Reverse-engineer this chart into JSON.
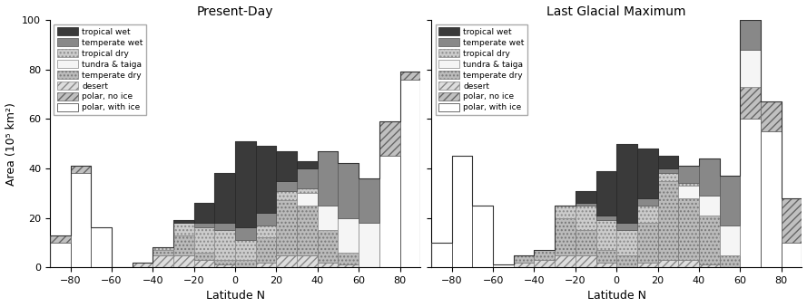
{
  "latitudes": [
    -85,
    -75,
    -65,
    -55,
    -45,
    -35,
    -25,
    -15,
    -5,
    5,
    15,
    25,
    35,
    45,
    55,
    65,
    75,
    85
  ],
  "bin_width": 10,
  "present_day": {
    "polar_with_ice": [
      10,
      38,
      16,
      0,
      0,
      0,
      0,
      0,
      0,
      0,
      0,
      0,
      0,
      0,
      0,
      0,
      45,
      76
    ],
    "polar_no_ice": [
      3,
      3,
      0,
      0,
      0,
      0,
      0,
      0,
      0,
      0,
      0,
      0,
      0,
      0,
      0,
      0,
      14,
      3
    ],
    "desert": [
      0,
      0,
      0,
      0,
      2,
      5,
      5,
      3,
      1,
      0,
      2,
      5,
      5,
      2,
      1,
      0,
      0,
      0
    ],
    "temperate_dry": [
      0,
      0,
      0,
      0,
      0,
      2,
      8,
      3,
      2,
      3,
      10,
      22,
      20,
      13,
      5,
      0,
      0,
      0
    ],
    "tundra_taiga": [
      0,
      0,
      0,
      0,
      0,
      0,
      0,
      0,
      0,
      0,
      0,
      0,
      5,
      10,
      14,
      18,
      0,
      0
    ],
    "tropical_dry": [
      0,
      0,
      0,
      0,
      0,
      1,
      5,
      10,
      12,
      8,
      5,
      4,
      2,
      0,
      0,
      0,
      0,
      0
    ],
    "temperate_wet": [
      0,
      0,
      0,
      0,
      0,
      0,
      0,
      2,
      3,
      5,
      5,
      4,
      8,
      22,
      22,
      18,
      0,
      0
    ],
    "tropical_wet": [
      0,
      0,
      0,
      0,
      0,
      0,
      1,
      8,
      20,
      35,
      27,
      12,
      3,
      0,
      0,
      0,
      0,
      0
    ]
  },
  "lgm": {
    "polar_with_ice": [
      10,
      45,
      25,
      1,
      0,
      0,
      0,
      0,
      0,
      0,
      0,
      0,
      0,
      0,
      0,
      60,
      55,
      10
    ],
    "polar_no_ice": [
      0,
      0,
      0,
      0,
      0,
      0,
      0,
      0,
      0,
      0,
      0,
      0,
      0,
      0,
      0,
      13,
      12,
      18
    ],
    "desert": [
      0,
      0,
      0,
      0,
      2,
      3,
      5,
      5,
      2,
      0,
      2,
      3,
      3,
      1,
      0,
      0,
      0,
      0
    ],
    "temperate_dry": [
      0,
      0,
      0,
      0,
      3,
      4,
      15,
      10,
      5,
      5,
      16,
      32,
      25,
      20,
      5,
      0,
      0,
      0
    ],
    "tundra_taiga": [
      0,
      0,
      0,
      0,
      0,
      0,
      0,
      0,
      0,
      0,
      0,
      0,
      5,
      8,
      12,
      15,
      0,
      0
    ],
    "tropical_dry": [
      0,
      0,
      0,
      0,
      0,
      0,
      5,
      10,
      12,
      10,
      7,
      3,
      1,
      0,
      0,
      0,
      0,
      0
    ],
    "temperate_wet": [
      0,
      0,
      0,
      0,
      0,
      0,
      0,
      1,
      2,
      3,
      3,
      2,
      7,
      15,
      20,
      12,
      0,
      0
    ],
    "tropical_wet": [
      0,
      0,
      0,
      0,
      0,
      0,
      0,
      5,
      18,
      32,
      20,
      5,
      0,
      0,
      0,
      0,
      0,
      0
    ]
  },
  "legend_order": [
    "tropical_wet",
    "temperate_wet",
    "tropical_dry",
    "tundra_taiga",
    "temperate_dry",
    "desert",
    "polar_no_ice",
    "polar_with_ice"
  ],
  "legend_labels": [
    "tropical wet",
    "temperate wet",
    "tropical dry",
    "tundra & taiga",
    "temperate dry",
    "desert",
    "polar, no ice",
    "polar, with ice"
  ],
  "biome_styles": {
    "tropical_wet": {
      "fc": "#3a3a3a",
      "ec": "#222222",
      "hatch": ""
    },
    "temperate_wet": {
      "fc": "#888888",
      "ec": "#555555",
      "hatch": ""
    },
    "tropical_dry": {
      "fc": "#cccccc",
      "ec": "#888888",
      "hatch": "...."
    },
    "tundra_taiga": {
      "fc": "#f5f5f5",
      "ec": "#888888",
      "hatch": ""
    },
    "temperate_dry": {
      "fc": "#bbbbbb",
      "ec": "#777777",
      "hatch": "...."
    },
    "desert": {
      "fc": "#dddddd",
      "ec": "#888888",
      "hatch": "////"
    },
    "polar_no_ice": {
      "fc": "#c0c0c0",
      "ec": "#666666",
      "hatch": "////"
    },
    "polar_with_ice": {
      "fc": "#ffffff",
      "ec": "#333333",
      "hatch": ""
    }
  },
  "titles": [
    "Present-Day",
    "Last Glacial Maximum"
  ],
  "xlabel": "Latitude N",
  "ylabel": "Area (10⁵ km²)",
  "ylim": [
    0,
    100
  ],
  "xlim": [
    -90,
    90
  ]
}
